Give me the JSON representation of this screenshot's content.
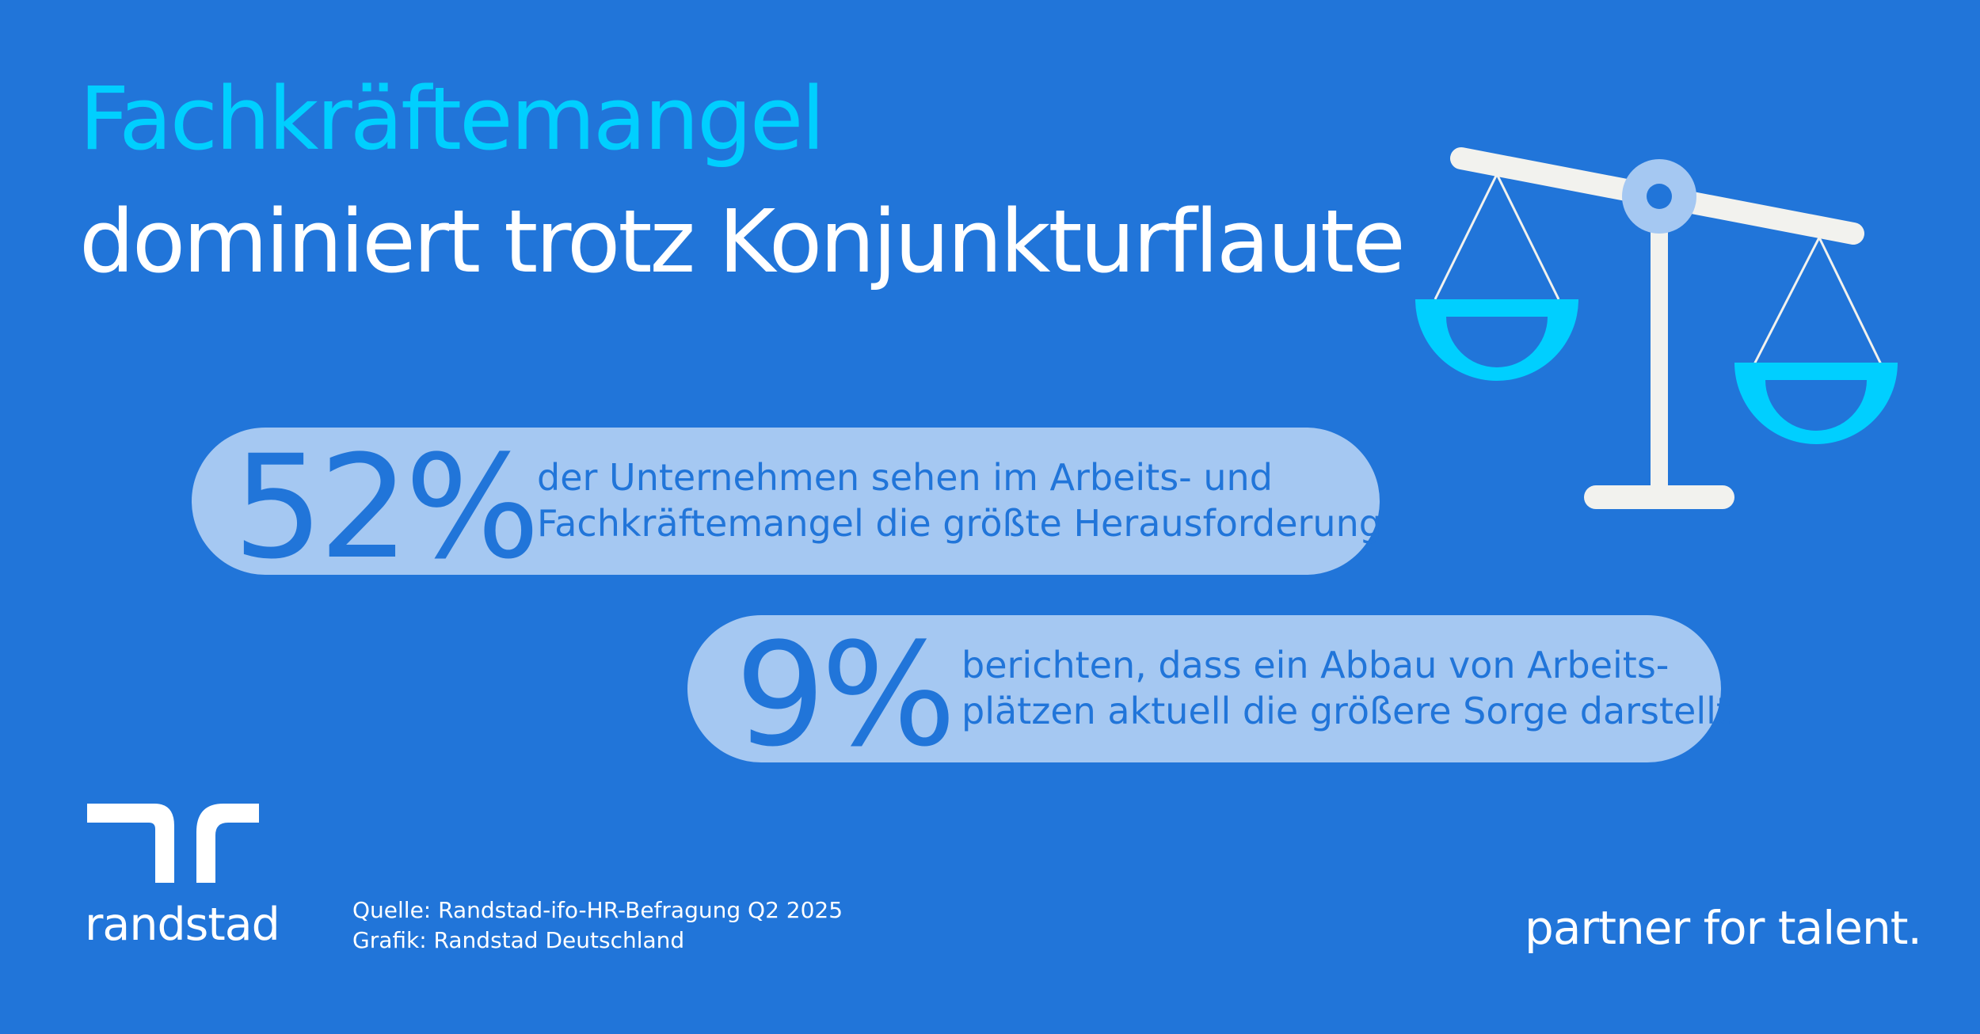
{
  "headline": {
    "line1": "Fachkräftemangel",
    "line2": "dominiert trotz Konjunkturflaute"
  },
  "stats": [
    {
      "value": "52%",
      "text_line1": "der Unternehmen sehen im Arbeits- und",
      "text_line2": "Fachkräftemangel die größte Herausforderung"
    },
    {
      "value": "9%",
      "text_line1": "berichten, dass ein Abbau von Arbeits-",
      "text_line2": "plätzen aktuell die größere Sorge darstellt"
    }
  ],
  "illustration": {
    "icon": "balance-scale-icon"
  },
  "brand": {
    "logo_icon": "randstad-logo-icon",
    "name": "randstad",
    "tagline": "partner for talent."
  },
  "source": {
    "line1": "Quelle: Randstad-ifo-HR-Befragung Q2 2025",
    "line2": "Grafik: Randstad Deutschland"
  },
  "colors": {
    "background": "#2175d9",
    "accent_cyan": "#00cfff",
    "pill": "#a5c8f2",
    "stat_text": "#2175d9",
    "scale_beam": "#f2f2ee",
    "scale_pivot": "#a5c8f2",
    "white": "#ffffff"
  }
}
